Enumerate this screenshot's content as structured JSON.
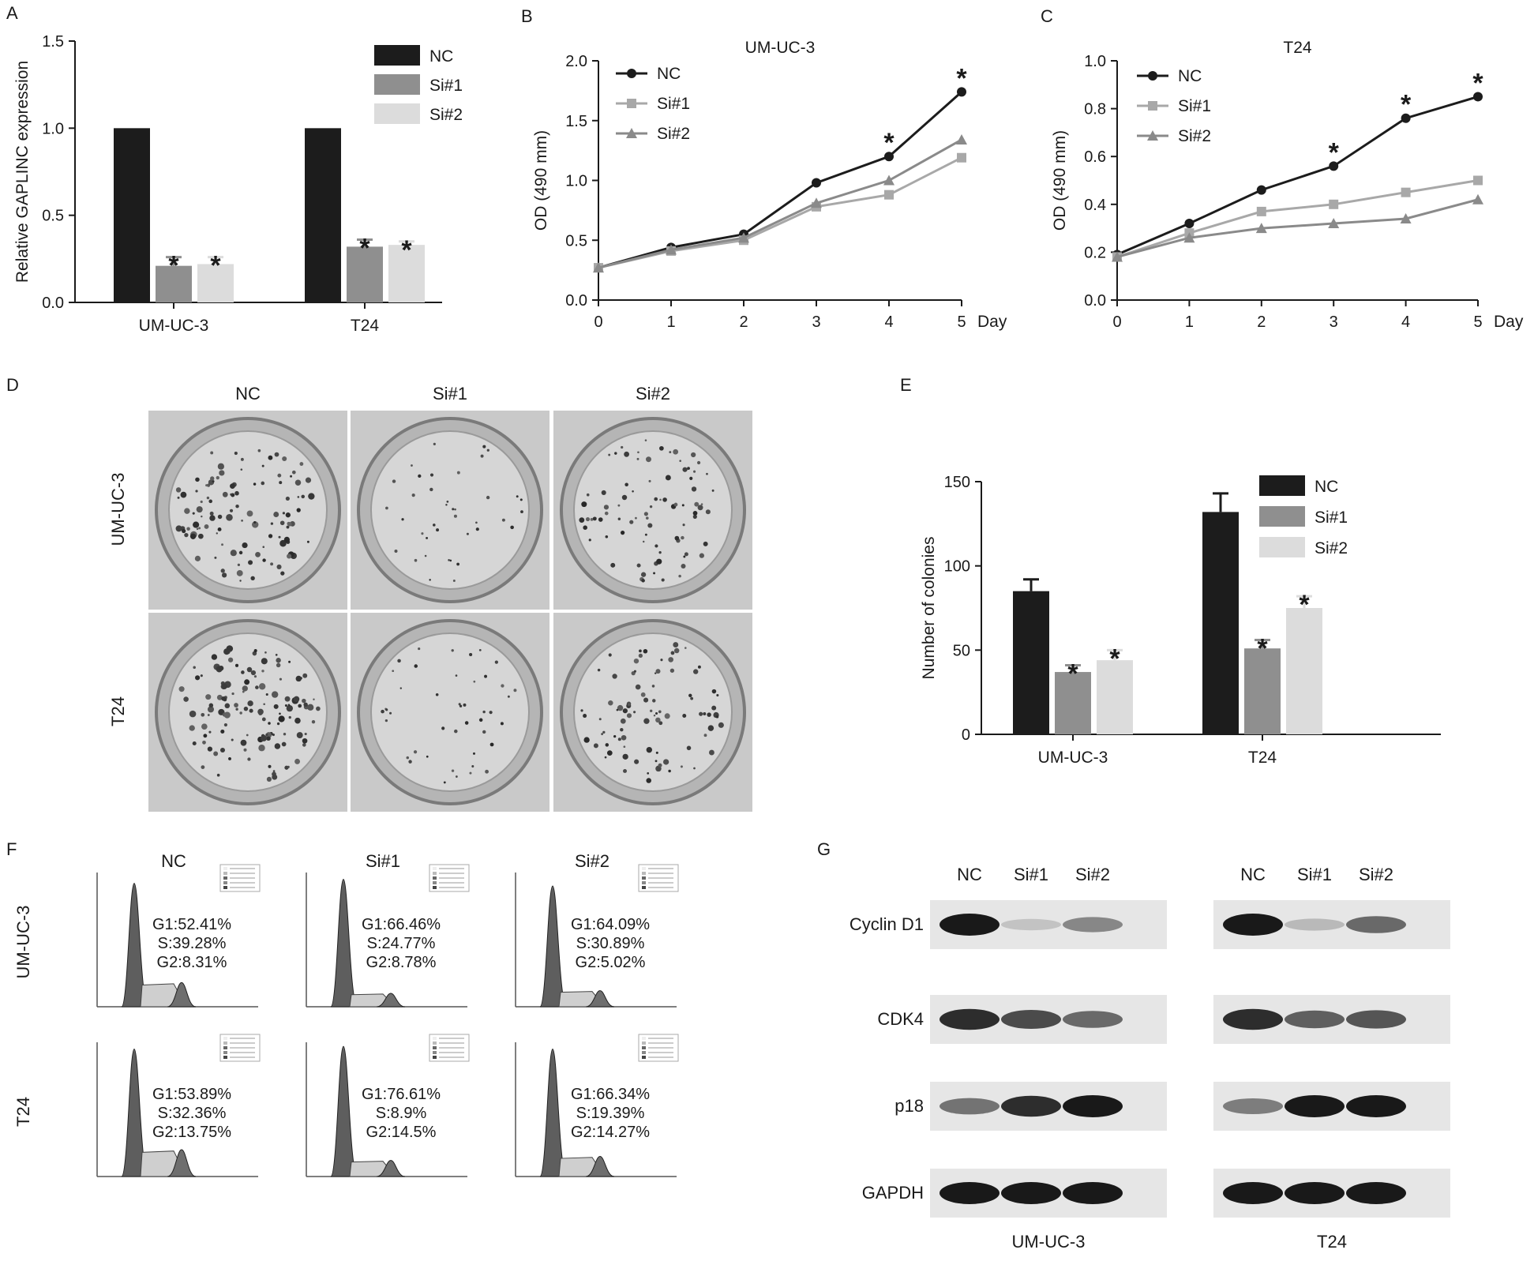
{
  "panel_labels": [
    "A",
    "B",
    "C",
    "D",
    "E",
    "F",
    "G"
  ],
  "colors": {
    "NC": "#1c1c1c",
    "Si1": "#8f8f8f",
    "Si2": "#dcdcdc",
    "line_si1": "#a8a8a8",
    "line_si2": "#8a8a8a"
  },
  "chart_data": [
    {
      "id": "A",
      "type": "bar",
      "ylabel": "Relative GAPLINC expression",
      "categories": [
        "UM-UC-3",
        "T24"
      ],
      "series": [
        {
          "name": "NC",
          "values": [
            1.0,
            1.0
          ],
          "errors": [
            0,
            0
          ]
        },
        {
          "name": "Si#1",
          "values": [
            0.21,
            0.32
          ],
          "errors": [
            0.05,
            0.04
          ]
        },
        {
          "name": "Si#2",
          "values": [
            0.22,
            0.33
          ],
          "errors": [
            0.04,
            0.02
          ]
        }
      ],
      "significance": {
        "Si#1": [
          "*",
          "*"
        ],
        "Si#2": [
          "*",
          "*"
        ]
      },
      "ylim": [
        0,
        1.5
      ],
      "yticks": [
        "0.0",
        "0.5",
        "1.0",
        "1.5"
      ],
      "legend": "top-right"
    },
    {
      "id": "B",
      "type": "line",
      "title": "UM-UC-3",
      "ylabel": "OD (490 mm)",
      "xunit": "Day",
      "x": [
        0,
        1,
        2,
        3,
        4,
        5
      ],
      "series": [
        {
          "name": "NC",
          "values": [
            0.27,
            0.44,
            0.55,
            0.98,
            1.2,
            1.74
          ]
        },
        {
          "name": "Si#1",
          "values": [
            0.27,
            0.41,
            0.5,
            0.78,
            0.88,
            1.19
          ]
        },
        {
          "name": "Si#2",
          "values": [
            0.27,
            0.42,
            0.52,
            0.81,
            1.0,
            1.34
          ]
        }
      ],
      "star_days": [
        4,
        5
      ],
      "ylim": [
        0,
        2.0
      ],
      "yticks": [
        "0.0",
        "0.5",
        "1.0",
        "1.5",
        "2.0"
      ],
      "legend": "top-left"
    },
    {
      "id": "C",
      "type": "line",
      "title": "T24",
      "ylabel": "OD (490 mm)",
      "xunit": "Day",
      "x": [
        0,
        1,
        2,
        3,
        4,
        5
      ],
      "series": [
        {
          "name": "NC",
          "values": [
            0.19,
            0.32,
            0.46,
            0.56,
            0.76,
            0.85
          ]
        },
        {
          "name": "Si#1",
          "values": [
            0.18,
            0.28,
            0.37,
            0.4,
            0.45,
            0.5
          ]
        },
        {
          "name": "Si#2",
          "values": [
            0.18,
            0.26,
            0.3,
            0.32,
            0.34,
            0.42
          ]
        }
      ],
      "star_days": [
        3,
        4,
        5
      ],
      "ylim": [
        0,
        1.0
      ],
      "yticks": [
        "0.0",
        "0.2",
        "0.4",
        "0.6",
        "0.8",
        "1.0"
      ],
      "legend": "top-left"
    },
    {
      "id": "E",
      "type": "bar",
      "ylabel": "Number of colonies",
      "categories": [
        "UM-UC-3",
        "T24"
      ],
      "series": [
        {
          "name": "NC",
          "values": [
            85,
            132
          ],
          "errors": [
            7,
            11
          ]
        },
        {
          "name": "Si#1",
          "values": [
            37,
            51
          ],
          "errors": [
            4,
            5
          ]
        },
        {
          "name": "Si#2",
          "values": [
            44,
            75
          ],
          "errors": [
            6,
            7
          ]
        }
      ],
      "significance": {
        "Si#1": [
          "*",
          "*"
        ],
        "Si#2": [
          "*",
          "*"
        ]
      },
      "ylim": [
        0,
        150
      ],
      "yticks": [
        "0",
        "50",
        "100",
        "150"
      ],
      "legend": "top-right"
    }
  ],
  "colony_panel": {
    "columns": [
      "NC",
      "Si#1",
      "Si#2"
    ],
    "rows": [
      "UM-UC-3",
      "T24"
    ],
    "density": [
      [
        1.0,
        0.35,
        0.75
      ],
      [
        1.2,
        0.4,
        0.8
      ]
    ]
  },
  "cell_cycle": {
    "columns": [
      "NC",
      "Si#1",
      "Si#2"
    ],
    "rows": [
      "UM-UC-3",
      "T24"
    ],
    "stats": [
      [
        {
          "g1": "G1:52.41%",
          "s": "S:39.28%",
          "g2": "G2:8.31%"
        },
        {
          "g1": "G1:66.46%",
          "s": "S:24.77%",
          "g2": "G2:8.78%"
        },
        {
          "g1": "G1:64.09%",
          "s": "S:30.89%",
          "g2": "G2:5.02%"
        }
      ],
      [
        {
          "g1": "G1:53.89%",
          "s": "S:32.36%",
          "g2": "G2:13.75%"
        },
        {
          "g1": "G1:76.61%",
          "s": "S:8.9%",
          "g2": "G2:14.5%"
        },
        {
          "g1": "G1:66.34%",
          "s": "S:19.39%",
          "g2": "G2:14.27%"
        }
      ]
    ]
  },
  "western": {
    "lanes": [
      "NC",
      "Si#1",
      "Si#2"
    ],
    "groups": [
      "UM-UC-3",
      "T24"
    ],
    "proteins": [
      "Cyclin D1",
      "CDK4",
      "p18",
      "GAPDH"
    ],
    "intensity": [
      [
        [
          1.0,
          0.15,
          0.45
        ],
        [
          1.0,
          0.2,
          0.6
        ]
      ],
      [
        [
          0.9,
          0.75,
          0.6
        ],
        [
          0.9,
          0.65,
          0.7
        ]
      ],
      [
        [
          0.55,
          0.9,
          1.0
        ],
        [
          0.5,
          1.0,
          1.0
        ]
      ],
      [
        [
          1.0,
          1.0,
          1.0
        ],
        [
          1.0,
          1.0,
          1.0
        ]
      ]
    ]
  }
}
